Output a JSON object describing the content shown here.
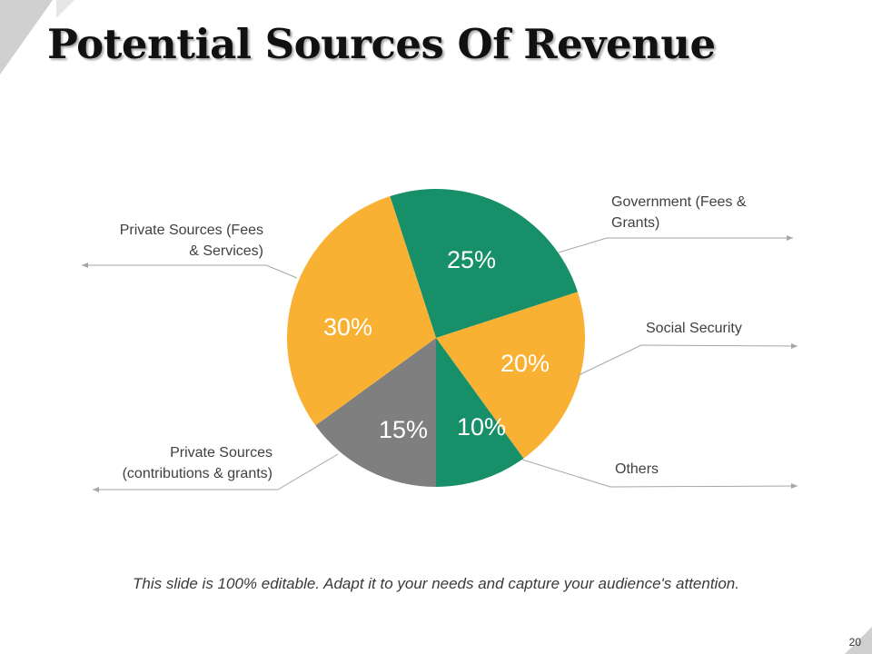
{
  "slide": {
    "title": "Potential Sources Of Revenue",
    "footer": "This slide is 100% editable. Adapt it to your needs and capture your audience's attention.",
    "page_number": "20"
  },
  "colors": {
    "green": "#17906A",
    "orange": "#F8B133",
    "gray": "#7F7F7F",
    "leader": "#A6A6A6"
  },
  "chart_data": {
    "type": "pie",
    "title": "Potential Sources Of Revenue",
    "slices": [
      {
        "label": "Government (Fees & Grants)",
        "label_lines": [
          "Government (Fees &",
          "Grants)"
        ],
        "value": 25,
        "display": "25%",
        "color": "#17906A"
      },
      {
        "label": "Social Security",
        "label_lines": [
          "Social Security"
        ],
        "value": 20,
        "display": "20%",
        "color": "#F8B133"
      },
      {
        "label": "Others",
        "label_lines": [
          "Others"
        ],
        "value": 10,
        "display": "10%",
        "color": "#17906A"
      },
      {
        "label": "Private Sources (contributions & grants)",
        "label_lines": [
          "Private Sources",
          "(contributions & grants)"
        ],
        "value": 15,
        "display": "15%",
        "color": "#7F7F7F"
      },
      {
        "label": "Private Sources (Fees & Services)",
        "label_lines": [
          "Private Sources (Fees",
          "& Services)"
        ],
        "value": 30,
        "display": "30%",
        "color": "#F8B133"
      }
    ]
  }
}
